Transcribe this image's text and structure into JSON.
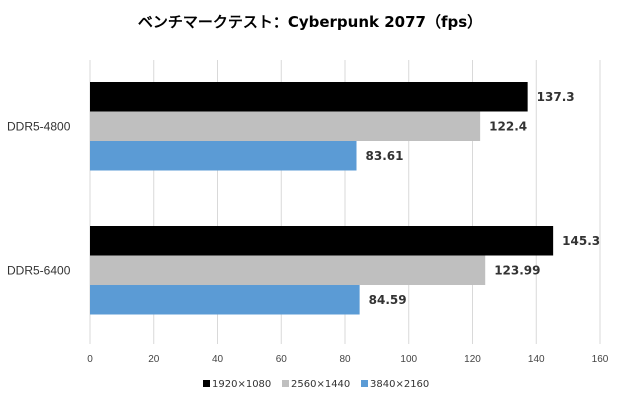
{
  "chart_data": {
    "type": "bar",
    "orientation": "horizontal",
    "title": "ベンチマークテスト：Cyberpunk 2077（fps）",
    "categories": [
      "DDR5-4800",
      "DDR5-6400"
    ],
    "series": [
      {
        "name": "1920×1080",
        "color": "#000000",
        "values": [
          137.3,
          145.3
        ],
        "labels": [
          "137.3",
          "145.3"
        ]
      },
      {
        "name": "2560×1440",
        "color": "#bfbfbf",
        "values": [
          122.4,
          123.99
        ],
        "labels": [
          "122.4",
          "123.99"
        ]
      },
      {
        "name": "3840×2160",
        "color": "#5b9bd5",
        "values": [
          83.61,
          84.59
        ],
        "labels": [
          "83.61",
          "84.59"
        ]
      }
    ],
    "xlim": [
      0,
      160
    ],
    "xticks": [
      "0",
      "20",
      "40",
      "60",
      "80",
      "100",
      "120",
      "140",
      "160"
    ],
    "grid": true,
    "legend": "bottom"
  }
}
